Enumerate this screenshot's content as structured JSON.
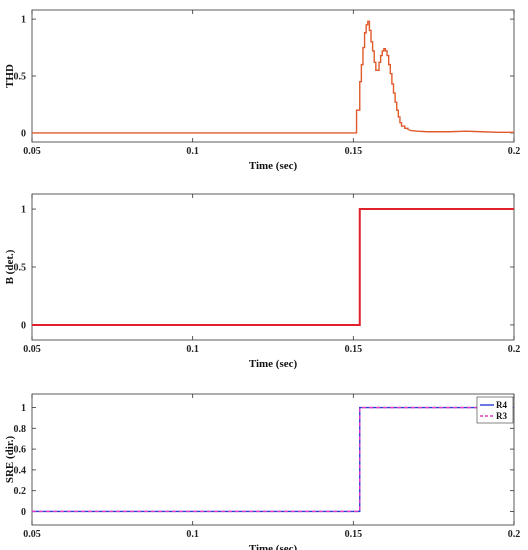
{
  "chart_data": [
    {
      "type": "line",
      "xlabel": "Time (sec)",
      "ylabel": "THD",
      "xlim": [
        0.05,
        0.2
      ],
      "ylim": [
        -0.08,
        1.08
      ],
      "xticks": [
        0.05,
        0.1,
        0.15,
        0.2
      ],
      "xtick_labels": [
        "0.05",
        "0.1",
        "0.15",
        "0.2"
      ],
      "yticks": [
        0,
        0.5,
        1
      ],
      "ytick_labels": [
        "0",
        "0.5",
        "1"
      ],
      "grid": false,
      "series": [
        {
          "color": "#e05a2b",
          "step": false,
          "x": [
            0.05,
            0.08,
            0.12,
            0.1505,
            0.151,
            0.152,
            0.1525,
            0.153,
            0.1535,
            0.154,
            0.1545,
            0.155,
            0.1555,
            0.156,
            0.1565,
            0.157,
            0.1575,
            0.158,
            0.1585,
            0.159,
            0.1595,
            0.16,
            0.1605,
            0.161,
            0.1615,
            0.162,
            0.1625,
            0.163,
            0.1635,
            0.164,
            0.1645,
            0.165,
            0.166,
            0.167,
            0.168,
            0.17,
            0.173,
            0.176,
            0.18,
            0.185,
            0.19,
            0.195,
            0.2
          ],
          "y": [
            0,
            0,
            0,
            0,
            0.2,
            0.45,
            0.6,
            0.75,
            0.88,
            0.95,
            0.98,
            0.9,
            0.8,
            0.72,
            0.62,
            0.55,
            0.55,
            0.62,
            0.68,
            0.72,
            0.74,
            0.72,
            0.68,
            0.6,
            0.52,
            0.43,
            0.35,
            0.27,
            0.2,
            0.14,
            0.09,
            0.06,
            0.04,
            0.03,
            0.02,
            0.015,
            0.01,
            0.01,
            0.01,
            0.015,
            0.01,
            0.005,
            0.005
          ]
        }
      ]
    },
    {
      "type": "line",
      "xlabel": "Time (sec)",
      "ylabel": "B (det.)",
      "xlim": [
        0.05,
        0.2
      ],
      "ylim": [
        -0.13,
        1.13
      ],
      "xticks": [
        0.05,
        0.1,
        0.15,
        0.2
      ],
      "xtick_labels": [
        "0.05",
        "0.1",
        "0.15",
        "0.2"
      ],
      "yticks": [
        0,
        0.5,
        1
      ],
      "ytick_labels": [
        "0",
        "0.5",
        "1"
      ],
      "grid": false,
      "series": [
        {
          "color": "#e0202a",
          "step": true,
          "x": [
            0.05,
            0.152,
            0.152,
            0.2
          ],
          "y": [
            0,
            0,
            1,
            1
          ]
        }
      ]
    },
    {
      "type": "line",
      "xlabel": "Time (sec)",
      "ylabel": "SRE (dir.)",
      "xlim": [
        0.05,
        0.2
      ],
      "ylim": [
        -0.13,
        1.13
      ],
      "xticks": [
        0.05,
        0.1,
        0.15,
        0.2
      ],
      "xtick_labels": [
        "0.05",
        "0.1",
        "0.15",
        "0.2"
      ],
      "yticks": [
        0,
        0.2,
        0.4,
        0.6,
        0.8,
        1
      ],
      "ytick_labels": [
        "0",
        "0.2",
        "0.4",
        "0.6",
        "0.8",
        "1"
      ],
      "grid": false,
      "legend": "top-right",
      "series": [
        {
          "name": "R4",
          "color": "#2a3fd8",
          "dash": false,
          "x": [
            0.05,
            0.152,
            0.152,
            0.2
          ],
          "y": [
            0,
            0,
            1,
            1
          ]
        },
        {
          "name": "R3",
          "color": "#e03cc0",
          "dash": true,
          "x": [
            0.05,
            0.152,
            0.152,
            0.2
          ],
          "y": [
            0,
            0,
            1,
            1
          ]
        }
      ]
    }
  ]
}
